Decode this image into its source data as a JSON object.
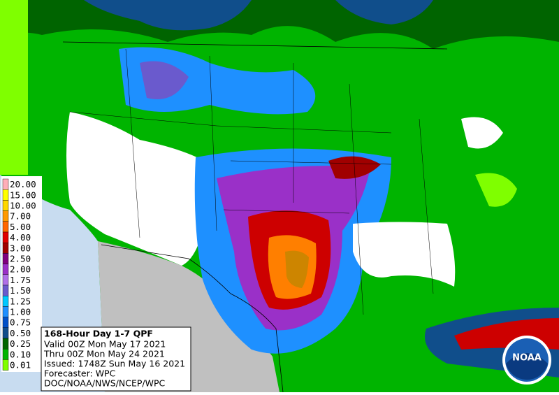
{
  "legend": [
    {
      "label": "20.00",
      "color": "#ffaeb9"
    },
    {
      "label": "15.00",
      "color": "#ffff00"
    },
    {
      "label": "10.00",
      "color": "#ffd700"
    },
    {
      "label": "7.00",
      "color": "#ff9900"
    },
    {
      "label": "5.00",
      "color": "#ff6600"
    },
    {
      "label": "4.00",
      "color": "#e00000"
    },
    {
      "label": "3.00",
      "color": "#a00000"
    },
    {
      "label": "2.50",
      "color": "#800080"
    },
    {
      "label": "2.00",
      "color": "#9a30c8"
    },
    {
      "label": "1.75",
      "color": "#b070e8"
    },
    {
      "label": "1.50",
      "color": "#6a5acd"
    },
    {
      "label": "1.25",
      "color": "#00c8ff"
    },
    {
      "label": "1.00",
      "color": "#1e90ff"
    },
    {
      "label": "0.75",
      "color": "#0050c8"
    },
    {
      "label": "0.50",
      "color": "#104e8b"
    },
    {
      "label": "0.25",
      "color": "#006400"
    },
    {
      "label": "0.10",
      "color": "#00b400"
    },
    {
      "label": "0.01",
      "color": "#7fff00"
    }
  ],
  "info": {
    "title": "168-Hour Day 1-7 QPF",
    "valid": "Valid 00Z Mon May 17 2021",
    "thru": "Thru 00Z Mon May 24 2021",
    "issued": "Issued: 1748Z Sun May 16 2021",
    "forecaster": "Forecaster: WPC",
    "source": "DOC/NOAA/NWS/NCEP/WPC"
  },
  "logo": "NOAA"
}
